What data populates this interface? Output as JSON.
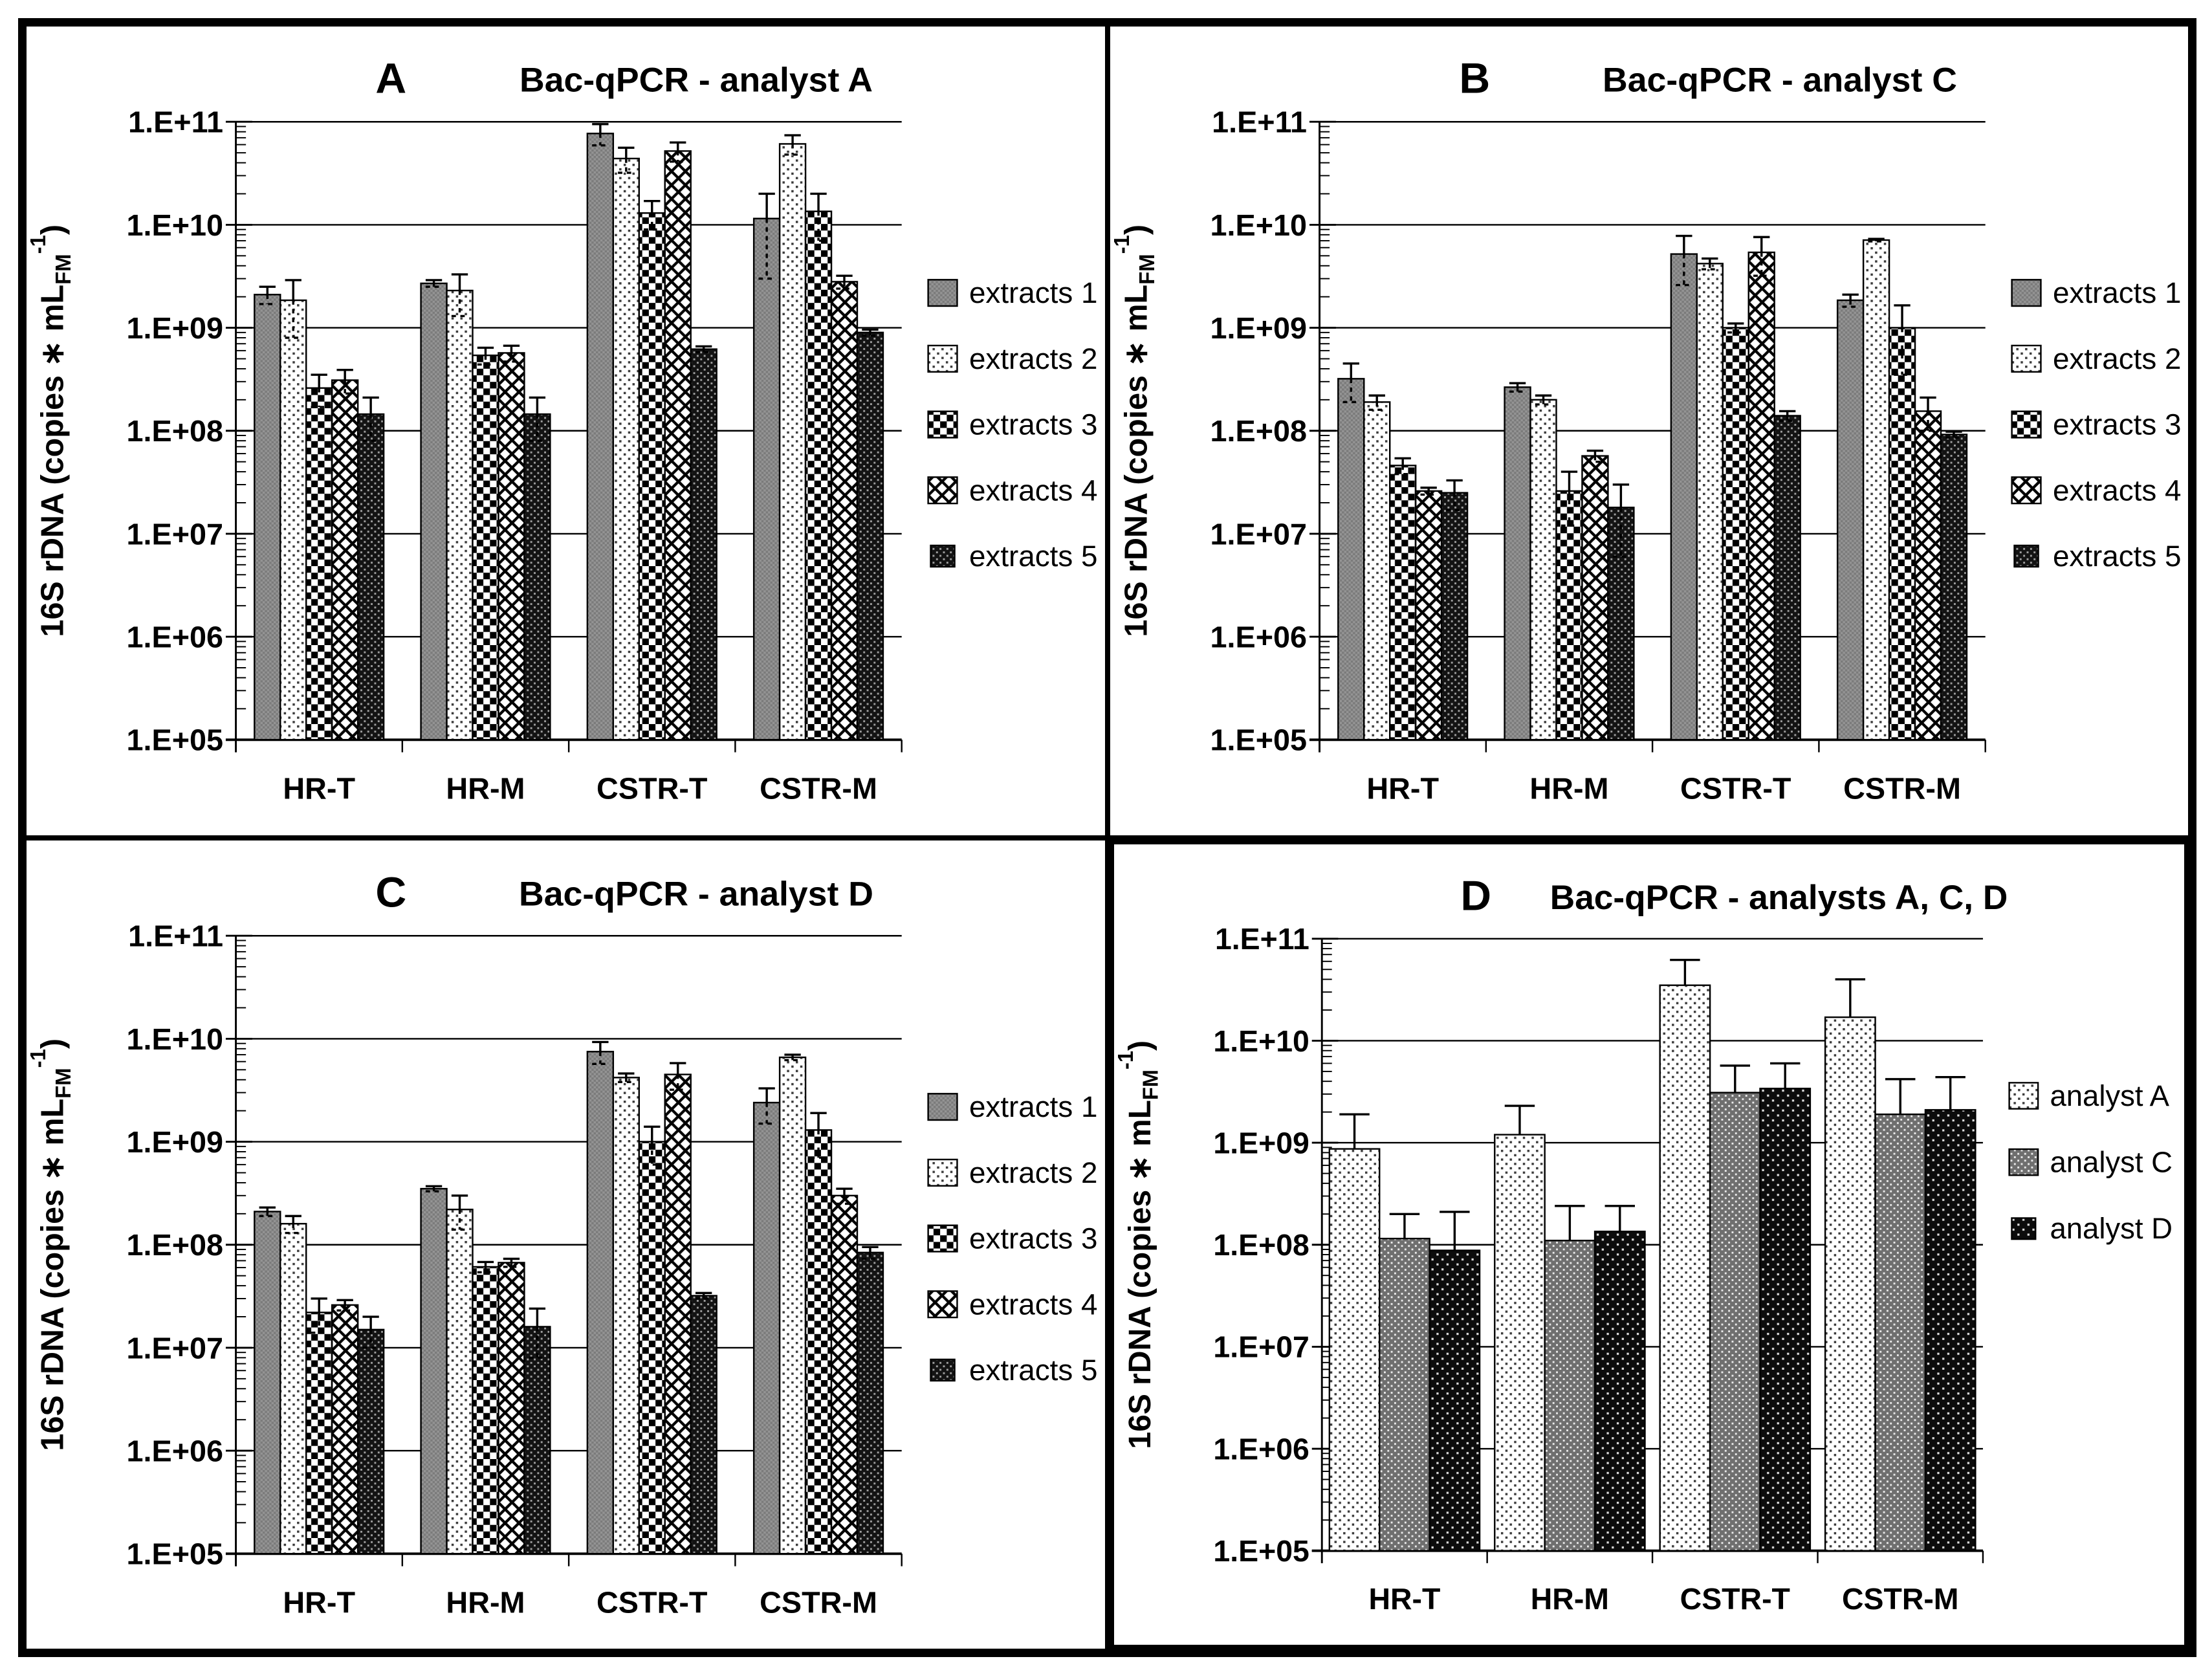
{
  "figure": {
    "y_axis_label": {
      "prefix": "16S rDNA (copies ",
      "asterisk": "∗",
      "unit": " mL",
      "subscript": "FM",
      "superscript": "-1",
      "suffix": ")"
    },
    "y_tick_labels": [
      "1.E+11",
      "1.E+10",
      "1.E+09",
      "1.E+08",
      "1.E+07",
      "1.E+06",
      "1.E+05"
    ],
    "categories": [
      "HR-T",
      "HR-M",
      "CSTR-T",
      "CSTR-M"
    ],
    "colors": {
      "ink": "#000000",
      "paper": "#ffffff",
      "bar_gray": "#8f8f8f"
    }
  },
  "chart_data": [
    {
      "panel_letter": "A",
      "title": "Bac-qPCR - analyst A",
      "type": "bar",
      "y_scale": "log",
      "ylim": [
        100000.0,
        100000000000.0
      ],
      "grid": true,
      "legend_position": "right",
      "error_bars": "both",
      "categories": [
        "HR-T",
        "HR-M",
        "CSTR-T",
        "CSTR-M"
      ],
      "series": [
        {
          "name": "extracts 1",
          "pattern": "gray-fine-checker",
          "values": [
            2100000000.0,
            2700000000.0,
            77000000000.0,
            11500000000.0
          ],
          "err_hi": [
            2500000000.0,
            2900000000.0,
            95000000000.0,
            20000000000.0
          ]
        },
        {
          "name": "extracts 2",
          "pattern": "white-sparse-dots",
          "values": [
            1850000000.0,
            2300000000.0,
            44000000000.0,
            61000000000.0
          ],
          "err_hi": [
            2900000000.0,
            3300000000.0,
            56000000000.0,
            74000000000.0
          ]
        },
        {
          "name": "extracts 3",
          "pattern": "bw-checkerboard",
          "values": [
            260000000.0,
            540000000.0,
            13000000000.0,
            13500000000.0
          ],
          "err_hi": [
            350000000.0,
            640000000.0,
            17000000000.0,
            20000000000.0
          ]
        },
        {
          "name": "extracts 4",
          "pattern": "diamond-lattice",
          "values": [
            310000000.0,
            570000000.0,
            52000000000.0,
            2800000000.0
          ],
          "err_hi": [
            390000000.0,
            670000000.0,
            63000000000.0,
            3200000000.0
          ]
        },
        {
          "name": "extracts 5",
          "pattern": "black-dot-grid",
          "values": [
            145000000.0,
            145000000.0,
            620000000.0,
            900000000.0
          ],
          "err_hi": [
            210000000.0,
            210000000.0,
            660000000.0,
            960000000.0
          ]
        }
      ]
    },
    {
      "panel_letter": "B",
      "title": "Bac-qPCR - analyst C",
      "type": "bar",
      "y_scale": "log",
      "ylim": [
        100000.0,
        100000000000.0
      ],
      "grid": true,
      "legend_position": "right",
      "error_bars": "both",
      "categories": [
        "HR-T",
        "HR-M",
        "CSTR-T",
        "CSTR-M"
      ],
      "series": [
        {
          "name": "extracts 1",
          "pattern": "gray-fine-checker",
          "values": [
            320000000.0,
            265000000.0,
            5200000000.0,
            1850000000.0
          ],
          "err_hi": [
            450000000.0,
            290000000.0,
            7800000000.0,
            2100000000.0
          ]
        },
        {
          "name": "extracts 2",
          "pattern": "white-sparse-dots",
          "values": [
            190000000.0,
            200000000.0,
            4200000000.0,
            7100000000.0
          ],
          "err_hi": [
            220000000.0,
            220000000.0,
            4700000000.0,
            7300000000.0
          ]
        },
        {
          "name": "extracts 3",
          "pattern": "bw-checkerboard",
          "values": [
            46000000.0,
            26000000.0,
            1000000000.0,
            1000000000.0
          ],
          "err_hi": [
            54000000.0,
            40000000.0,
            1100000000.0,
            1650000000.0
          ]
        },
        {
          "name": "extracts 4",
          "pattern": "diamond-lattice",
          "values": [
            26000000.0,
            57000000.0,
            5400000000.0,
            155000000.0
          ],
          "err_hi": [
            28000000.0,
            64000000.0,
            7600000000.0,
            210000000.0
          ]
        },
        {
          "name": "extracts 5",
          "pattern": "black-dot-grid",
          "values": [
            25000000.0,
            18000000.0,
            140000000.0,
            92000000.0
          ],
          "err_hi": [
            33000000.0,
            30000000.0,
            155000000.0,
            98000000.0
          ]
        }
      ]
    },
    {
      "panel_letter": "C",
      "title": "Bac-qPCR - analyst D",
      "type": "bar",
      "y_scale": "log",
      "ylim": [
        100000.0,
        100000000000.0
      ],
      "grid": true,
      "legend_position": "right",
      "error_bars": "both",
      "categories": [
        "HR-T",
        "HR-M",
        "CSTR-T",
        "CSTR-M"
      ],
      "series": [
        {
          "name": "extracts 1",
          "pattern": "gray-fine-checker",
          "values": [
            210000000.0,
            350000000.0,
            7500000000.0,
            2400000000.0
          ],
          "err_hi": [
            230000000.0,
            370000000.0,
            9300000000.0,
            3300000000.0
          ]
        },
        {
          "name": "extracts 2",
          "pattern": "white-sparse-dots",
          "values": [
            160000000.0,
            220000000.0,
            4200000000.0,
            6600000000.0
          ],
          "err_hi": [
            190000000.0,
            300000000.0,
            4600000000.0,
            7000000000.0
          ]
        },
        {
          "name": "extracts 3",
          "pattern": "bw-checkerboard",
          "values": [
            22000000.0,
            61000000.0,
            1000000000.0,
            1300000000.0
          ],
          "err_hi": [
            30000000.0,
            68000000.0,
            1400000000.0,
            1900000000.0
          ]
        },
        {
          "name": "extracts 4",
          "pattern": "diamond-lattice",
          "values": [
            26000000.0,
            67000000.0,
            4500000000.0,
            300000000.0
          ],
          "err_hi": [
            29000000.0,
            73000000.0,
            5800000000.0,
            350000000.0
          ]
        },
        {
          "name": "extracts 5",
          "pattern": "black-dot-grid",
          "values": [
            15000000.0,
            16000000.0,
            32000000.0,
            84000000.0
          ],
          "err_hi": [
            20000000.0,
            24000000.0,
            34000000.0,
            95000000.0
          ]
        }
      ]
    },
    {
      "panel_letter": "D",
      "title": "Bac-qPCR - analysts A, C, D",
      "type": "bar",
      "y_scale": "log",
      "ylim": [
        100000.0,
        100000000000.0
      ],
      "grid": true,
      "legend_position": "right",
      "error_bars": "up",
      "categories": [
        "HR-T",
        "HR-M",
        "CSTR-T",
        "CSTR-M"
      ],
      "series": [
        {
          "name": "analyst A",
          "pattern": "white-sparse-dots",
          "values": [
            870000000.0,
            1200000000.0,
            35000000000.0,
            17000000000.0
          ],
          "err_hi": [
            1900000000.0,
            2300000000.0,
            62000000000.0,
            40000000000.0
          ]
        },
        {
          "name": "analyst C",
          "pattern": "gray-dot-grid",
          "values": [
            115000000.0,
            110000000.0,
            3100000000.0,
            1900000000.0
          ],
          "err_hi": [
            200000000.0,
            240000000.0,
            5700000000.0,
            4200000000.0
          ]
        },
        {
          "name": "analyst D",
          "pattern": "black-sparse-dots",
          "values": [
            88000000.0,
            135000000.0,
            3400000000.0,
            2100000000.0
          ],
          "err_hi": [
            210000000.0,
            240000000.0,
            6000000000.0,
            4400000000.0
          ]
        }
      ]
    }
  ]
}
